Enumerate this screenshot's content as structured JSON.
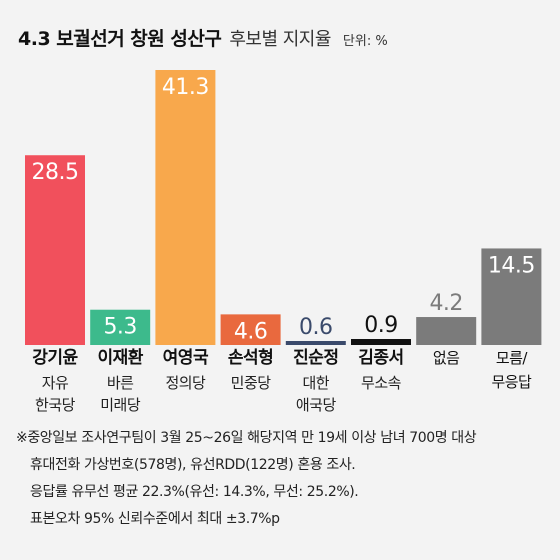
{
  "chart_data": {
    "type": "bar",
    "title": "4.3 보궐선거 창원 성산구",
    "subtitle": "후보별 지지율",
    "unit": "단위: %",
    "categories": [
      "강기윤",
      "이재환",
      "여영국",
      "손석형",
      "진순정",
      "김종서",
      "없음",
      "모름/ 무응답"
    ],
    "parties": [
      "자유 한국당",
      "바른 미래당",
      "정의당",
      "민중당",
      "대한 애국당",
      "무소속",
      null,
      null
    ],
    "values": [
      28.5,
      5.3,
      41.3,
      4.6,
      0.6,
      0.9,
      4.2,
      14.5
    ],
    "colors": [
      "#f1505c",
      "#3dba8c",
      "#f8a84c",
      "#e9693e",
      "#3a4a6b",
      "#111111",
      "#7b7b7b",
      "#7b7b7b"
    ],
    "notes": [
      "※중앙일보 조사연구팀이 3월 25~26일 해당지역 만 19세 이상 남녀 700명 대상",
      "휴대전화 가상번호(578명), 유선RDD(122명) 혼용 조사.",
      "응답률 유무선 평균 22.3%(유선: 14.3%, 무선: 25.2%).",
      "표본오차 95% 신뢰수준에서 최대 ±3.7%p"
    ]
  }
}
